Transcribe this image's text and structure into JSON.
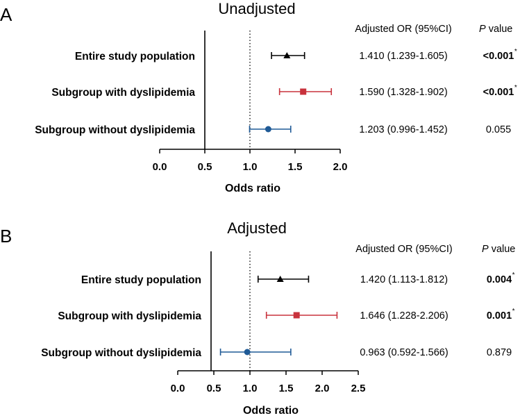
{
  "chart_data": [
    {
      "type": "forest",
      "panel_label": "A",
      "title": "Unadjusted",
      "xlabel": "Odds ratio",
      "xlim": [
        0,
        2.0
      ],
      "xticks": [
        "0.0",
        "0.5",
        "1.0",
        "1.5",
        "2.0"
      ],
      "reference_line": 1.0,
      "header": {
        "or_col": "Adjusted OR (95%CI)",
        "p_col_italic": "P",
        "p_col_rest": " value"
      },
      "rows": [
        {
          "label": "Entire study population",
          "or": 1.41,
          "lower": 1.239,
          "upper": 1.605,
          "marker": "triangle",
          "color": "#000000",
          "or_text": "1.410 (1.239-1.605)",
          "p_text": "<0.001",
          "p_bold": true,
          "p_star": "*"
        },
        {
          "label": "Subgroup with dyslipidemia",
          "or": 1.59,
          "lower": 1.328,
          "upper": 1.902,
          "marker": "square",
          "color": "#c8323c",
          "or_text": "1.590 (1.328-1.902)",
          "p_text": "<0.001",
          "p_bold": true,
          "p_star": "*"
        },
        {
          "label": "Subgroup without dyslipidemia",
          "or": 1.203,
          "lower": 0.996,
          "upper": 1.452,
          "marker": "circle",
          "color": "#1f5a96",
          "or_text": "1.203 (0.996-1.452)",
          "p_text": "0.055",
          "p_bold": false,
          "p_star": ""
        }
      ]
    },
    {
      "type": "forest",
      "panel_label": "B",
      "title": "Adjusted",
      "xlabel": "Odds ratio",
      "xlim": [
        0,
        2.5
      ],
      "xticks": [
        "0.0",
        "0.5",
        "1.0",
        "1.5",
        "2.0",
        "2.5"
      ],
      "reference_line": 1.0,
      "header": {
        "or_col": "Adjusted OR (95%CI)",
        "p_col_italic": "P",
        "p_col_rest": " value"
      },
      "rows": [
        {
          "label": "Entire study population",
          "or": 1.42,
          "lower": 1.113,
          "upper": 1.812,
          "marker": "triangle",
          "color": "#000000",
          "or_text": "1.420 (1.113-1.812)",
          "p_text": "0.004",
          "p_bold": true,
          "p_star": "*"
        },
        {
          "label": "Subgroup with dyslipidemia",
          "or": 1.646,
          "lower": 1.228,
          "upper": 2.206,
          "marker": "square",
          "color": "#c8323c",
          "or_text": "1.646 (1.228-2.206)",
          "p_text": "0.001",
          "p_bold": true,
          "p_star": "*"
        },
        {
          "label": "Subgroup without dyslipidemia",
          "or": 0.963,
          "lower": 0.592,
          "upper": 1.566,
          "marker": "circle",
          "color": "#1f5a96",
          "or_text": "0.963 (0.592-1.566)",
          "p_text": "0.879",
          "p_bold": false,
          "p_star": ""
        }
      ]
    }
  ]
}
